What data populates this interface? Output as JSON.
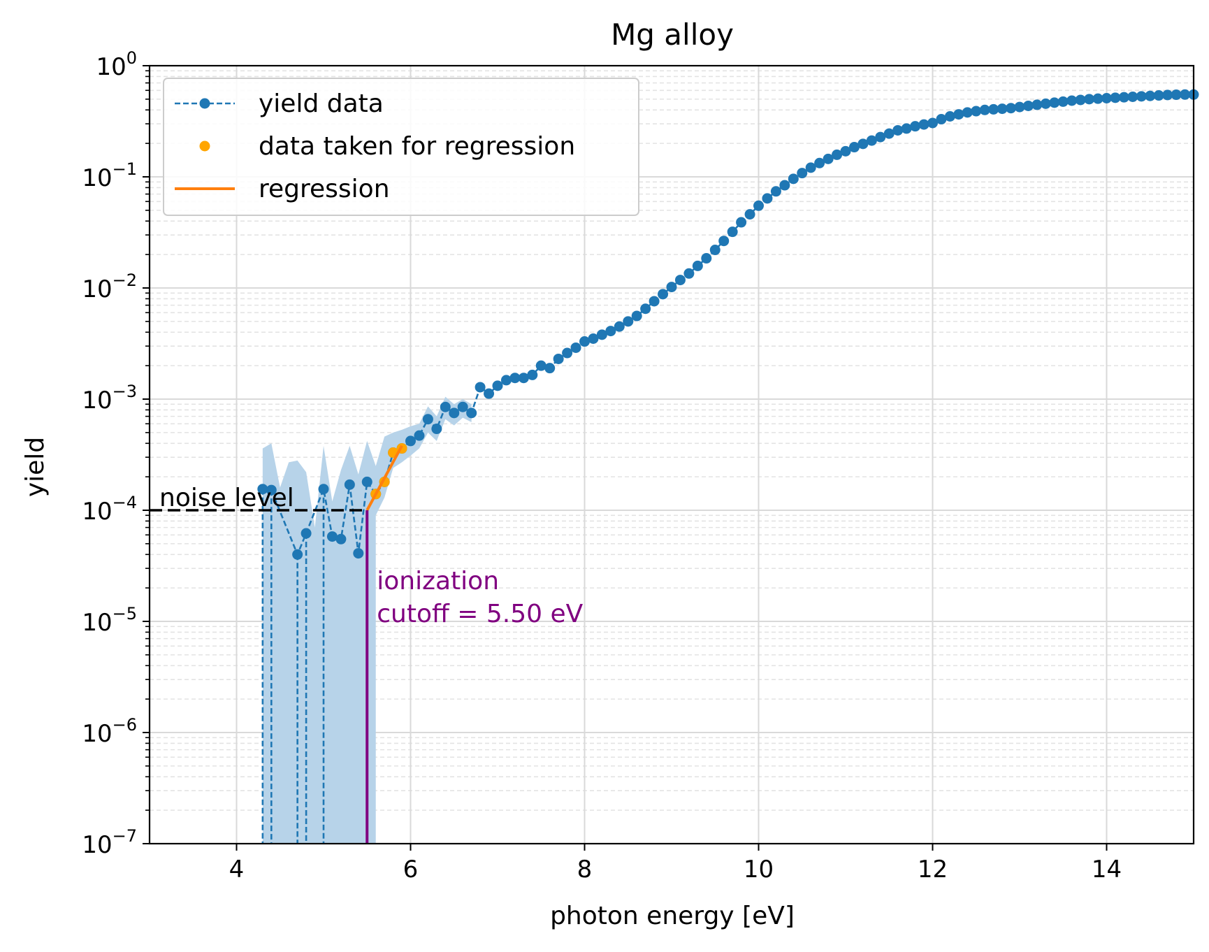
{
  "chart_data": {
    "type": "line",
    "title": "Mg alloy",
    "xlabel": "photon energy [eV]",
    "ylabel": "yield",
    "xlim": [
      3,
      15
    ],
    "ylim": [
      1e-07,
      1
    ],
    "yscale": "log",
    "grid": true,
    "legend_position": "top-left",
    "x_ticks": [
      4,
      6,
      8,
      10,
      12,
      14
    ],
    "y_ticks": [
      {
        "value": 1e-07,
        "base": "10",
        "exp": "−7"
      },
      {
        "value": 1e-06,
        "base": "10",
        "exp": "−6"
      },
      {
        "value": 1e-05,
        "base": "10",
        "exp": "−5"
      },
      {
        "value": 0.0001,
        "base": "10",
        "exp": "−4"
      },
      {
        "value": 0.001,
        "base": "10",
        "exp": "−3"
      },
      {
        "value": 0.01,
        "base": "10",
        "exp": "−2"
      },
      {
        "value": 0.1,
        "base": "10",
        "exp": "−1"
      },
      {
        "value": 1,
        "base": "10",
        "exp": "0"
      }
    ],
    "legend": [
      {
        "label": "yield data",
        "marker": "line-dot",
        "color": "#1f77b4"
      },
      {
        "label": "data taken for regression",
        "marker": "dot",
        "color": "#ffa500"
      },
      {
        "label": "regression",
        "marker": "line",
        "color": "#ff7f0e"
      }
    ],
    "colors": {
      "yield": "#1f77b4",
      "band": "#b7d3e9",
      "regression_points": "#ffa500",
      "regression_line": "#ff7f0e",
      "cutoff": "#800080",
      "noise": "#000000",
      "grid_major": "#d9d9d9",
      "grid_minor": "#e3e3e3"
    },
    "series": [
      {
        "name": "yield data",
        "x": [
          4.3,
          4.4,
          4.7,
          4.8,
          5.0,
          5.1,
          5.2,
          5.3,
          5.4,
          5.5,
          5.6,
          5.7,
          5.8,
          5.9,
          6.0,
          6.1,
          6.2,
          6.3,
          6.4,
          6.5,
          6.6,
          6.7,
          6.8,
          6.9,
          7.0,
          7.1,
          7.2,
          7.3,
          7.4,
          7.5,
          7.6,
          7.7,
          7.8,
          7.9,
          8.0,
          8.1,
          8.2,
          8.3,
          8.4,
          8.5,
          8.6,
          8.7,
          8.8,
          8.9,
          9.0,
          9.1,
          9.2,
          9.3,
          9.4,
          9.5,
          9.6,
          9.7,
          9.8,
          9.9,
          10.0,
          10.1,
          10.2,
          10.3,
          10.4,
          10.5,
          10.6,
          10.7,
          10.8,
          10.9,
          11.0,
          11.1,
          11.2,
          11.3,
          11.4,
          11.5,
          11.6,
          11.7,
          11.8,
          11.9,
          12.0,
          12.1,
          12.2,
          12.3,
          12.4,
          12.5,
          12.6,
          12.7,
          12.8,
          12.9,
          13.0,
          13.1,
          13.2,
          13.3,
          13.4,
          13.5,
          13.6,
          13.7,
          13.8,
          13.9,
          14.0,
          14.1,
          14.2,
          14.3,
          14.4,
          14.5,
          14.6,
          14.7,
          14.8,
          14.9,
          15.0
        ],
        "y": [
          0.000155,
          0.000152,
          4e-05,
          6.2e-05,
          0.000155,
          5.8e-05,
          5.5e-05,
          0.00017,
          4.1e-05,
          0.00018,
          0.00014,
          0.00018,
          0.00033,
          0.00036,
          0.00042,
          0.00047,
          0.00066,
          0.00054,
          0.00085,
          0.00075,
          0.00085,
          0.00075,
          0.00128,
          0.00112,
          0.00132,
          0.00148,
          0.00155,
          0.00155,
          0.00165,
          0.002,
          0.0019,
          0.0023,
          0.0026,
          0.0029,
          0.0033,
          0.0035,
          0.0038,
          0.0041,
          0.0045,
          0.005,
          0.0056,
          0.0065,
          0.0076,
          0.0088,
          0.0102,
          0.0118,
          0.0135,
          0.0158,
          0.0185,
          0.022,
          0.0265,
          0.032,
          0.039,
          0.046,
          0.055,
          0.064,
          0.074,
          0.084,
          0.096,
          0.108,
          0.121,
          0.133,
          0.145,
          0.158,
          0.17,
          0.185,
          0.198,
          0.212,
          0.228,
          0.245,
          0.262,
          0.272,
          0.285,
          0.296,
          0.305,
          0.33,
          0.35,
          0.365,
          0.38,
          0.39,
          0.4,
          0.405,
          0.41,
          0.415,
          0.425,
          0.435,
          0.445,
          0.455,
          0.465,
          0.475,
          0.485,
          0.492,
          0.5,
          0.505,
          0.51,
          0.515,
          0.52,
          0.525,
          0.53,
          0.535,
          0.54,
          0.545,
          0.548,
          0.55,
          0.55
        ],
        "drops_below_axis_at": [
          4.3,
          4.4,
          4.7,
          4.8,
          5.0
        ]
      },
      {
        "name": "data taken for regression",
        "x": [
          5.6,
          5.7,
          5.8,
          5.9
        ],
        "y": [
          0.00014,
          0.00018,
          0.00033,
          0.00036
        ]
      },
      {
        "name": "regression",
        "x": [
          5.5,
          5.9
        ],
        "y": [
          0.0001,
          0.00038
        ]
      }
    ],
    "band_lower_x": [
      5.6,
      5.7,
      5.8,
      5.9,
      6.0,
      6.1,
      6.2,
      6.3,
      6.4,
      6.5,
      6.6,
      6.7
    ],
    "band_lower_y": [
      9e-05,
      0.00013,
      0.00024,
      0.00027,
      0.00031,
      0.00036,
      0.0005,
      0.00042,
      0.00066,
      0.00058,
      0.00068,
      0.00062
    ],
    "band_upper_x": [
      4.3,
      4.4,
      4.5,
      4.6,
      4.7,
      4.8,
      4.9,
      5.0,
      5.1,
      5.2,
      5.3,
      5.4,
      5.5,
      5.6,
      5.7,
      5.8,
      5.9,
      6.0,
      6.1,
      6.2,
      6.3,
      6.4,
      6.5,
      6.6,
      6.7
    ],
    "band_upper_y": [
      0.00036,
      0.0004,
      0.00016,
      0.00027,
      0.00028,
      0.00022,
      7e-05,
      0.00038,
      0.00012,
      0.00023,
      0.00038,
      0.00021,
      0.00042,
      0.00025,
      0.00046,
      0.0005,
      0.00053,
      0.00057,
      0.0006,
      0.00086,
      0.0007,
      0.00105,
      0.0009,
      0.001,
      0.0009
    ],
    "noise_level": {
      "label": "noise level",
      "value": 0.0001,
      "x_from": 3.0,
      "x_to": 5.5
    },
    "cutoff": {
      "label_line1": "ionization",
      "label_line2": "cutoff = 5.50 eV",
      "x": 5.5,
      "y_top": 0.0001
    }
  }
}
